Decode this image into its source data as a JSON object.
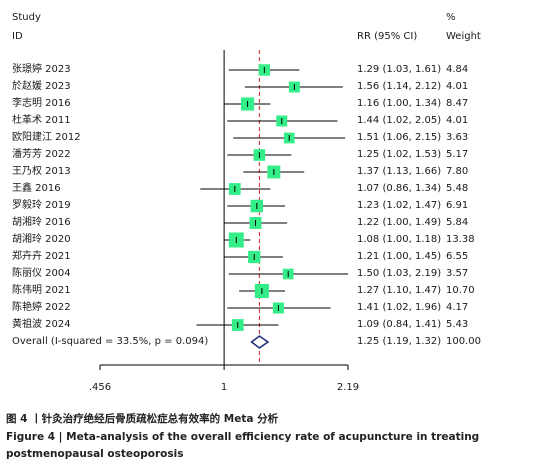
{
  "header": {
    "study_line1": "Study",
    "study_line2": "ID",
    "rr_label": "RR (95% CI)",
    "weight_line1": "%",
    "weight_line2": "Weight"
  },
  "chart_data": {
    "type": "forest",
    "x_scale": "log",
    "null_value": 1,
    "pooled_line": 1.25,
    "xticks": [
      ".456",
      "1",
      "2.19"
    ],
    "xtick_values": [
      0.456,
      1,
      2.19
    ],
    "studies": [
      {
        "label": "张璟婷 2023",
        "rr": 1.29,
        "lo": 1.03,
        "hi": 1.61,
        "ci_text": "1.29 (1.03, 1.61)",
        "weight": 4.84,
        "weight_text": "4.84"
      },
      {
        "label": "於赵媛 2023",
        "rr": 1.56,
        "lo": 1.14,
        "hi": 2.12,
        "ci_text": "1.56 (1.14, 2.12)",
        "weight": 4.01,
        "weight_text": "4.01"
      },
      {
        "label": "李志明 2016",
        "rr": 1.16,
        "lo": 1.0,
        "hi": 1.34,
        "ci_text": "1.16 (1.00, 1.34)",
        "weight": 8.47,
        "weight_text": "8.47"
      },
      {
        "label": "杜革术 2011",
        "rr": 1.44,
        "lo": 1.02,
        "hi": 2.05,
        "ci_text": "1.44 (1.02, 2.05)",
        "weight": 4.01,
        "weight_text": "4.01"
      },
      {
        "label": "欧阳建江 2012",
        "rr": 1.51,
        "lo": 1.06,
        "hi": 2.15,
        "ci_text": "1.51 (1.06, 2.15)",
        "weight": 3.63,
        "weight_text": "3.63"
      },
      {
        "label": "潘芳芳 2022",
        "rr": 1.25,
        "lo": 1.02,
        "hi": 1.53,
        "ci_text": "1.25 (1.02, 1.53)",
        "weight": 5.17,
        "weight_text": "5.17"
      },
      {
        "label": "王乃权 2013",
        "rr": 1.37,
        "lo": 1.13,
        "hi": 1.66,
        "ci_text": "1.37 (1.13, 1.66)",
        "weight": 7.8,
        "weight_text": "7.80"
      },
      {
        "label": "王鑫 2016",
        "rr": 1.07,
        "lo": 0.86,
        "hi": 1.34,
        "ci_text": "1.07 (0.86, 1.34)",
        "weight": 5.48,
        "weight_text": "5.48"
      },
      {
        "label": "罗毅玲 2019",
        "rr": 1.23,
        "lo": 1.02,
        "hi": 1.47,
        "ci_text": "1.23 (1.02, 1.47)",
        "weight": 6.91,
        "weight_text": "6.91"
      },
      {
        "label": "胡湘玲 2016",
        "rr": 1.22,
        "lo": 1.0,
        "hi": 1.49,
        "ci_text": "1.22 (1.00, 1.49)",
        "weight": 5.84,
        "weight_text": "5.84"
      },
      {
        "label": "胡湘玲 2020",
        "rr": 1.08,
        "lo": 1.0,
        "hi": 1.18,
        "ci_text": "1.08 (1.00, 1.18)",
        "weight": 13.38,
        "weight_text": "13.38"
      },
      {
        "label": "郑卉卉 2021",
        "rr": 1.21,
        "lo": 1.0,
        "hi": 1.45,
        "ci_text": "1.21 (1.00, 1.45)",
        "weight": 6.55,
        "weight_text": "6.55"
      },
      {
        "label": "陈丽仪 2004",
        "rr": 1.5,
        "lo": 1.03,
        "hi": 2.19,
        "ci_text": "1.50 (1.03, 2.19)",
        "weight": 3.57,
        "weight_text": "3.57"
      },
      {
        "label": "陈伟明 2021",
        "rr": 1.27,
        "lo": 1.1,
        "hi": 1.47,
        "ci_text": "1.27 (1.10, 1.47)",
        "weight": 10.7,
        "weight_text": "10.70"
      },
      {
        "label": "陈艳婷 2022",
        "rr": 1.41,
        "lo": 1.02,
        "hi": 1.96,
        "ci_text": "1.41 (1.02, 1.96)",
        "weight": 4.17,
        "weight_text": "4.17"
      },
      {
        "label": "黄祖波 2024",
        "rr": 1.09,
        "lo": 0.84,
        "hi": 1.41,
        "ci_text": "1.09 (0.84, 1.41)",
        "weight": 5.43,
        "weight_text": "5.43"
      }
    ],
    "overall": {
      "label": "Overall  (I-squared = 33.5%, p = 0.094)",
      "rr": 1.25,
      "lo": 1.19,
      "hi": 1.32,
      "ci_text": "1.25 (1.19, 1.32)",
      "weight_text": "100.00"
    },
    "colors": {
      "box": "#33ee88",
      "diamond": "#1a2a7a",
      "null_line": "#000000",
      "pooled_line": "#cc2222"
    }
  },
  "caption": {
    "cn": "图 4 丨针灸治疗绝经后骨质疏松症总有效率的 Meta 分析",
    "en": "Figure 4  |  Meta-analysis of the overall efficiency rate of acupuncture in treating postmenopausal osteoporosis"
  }
}
